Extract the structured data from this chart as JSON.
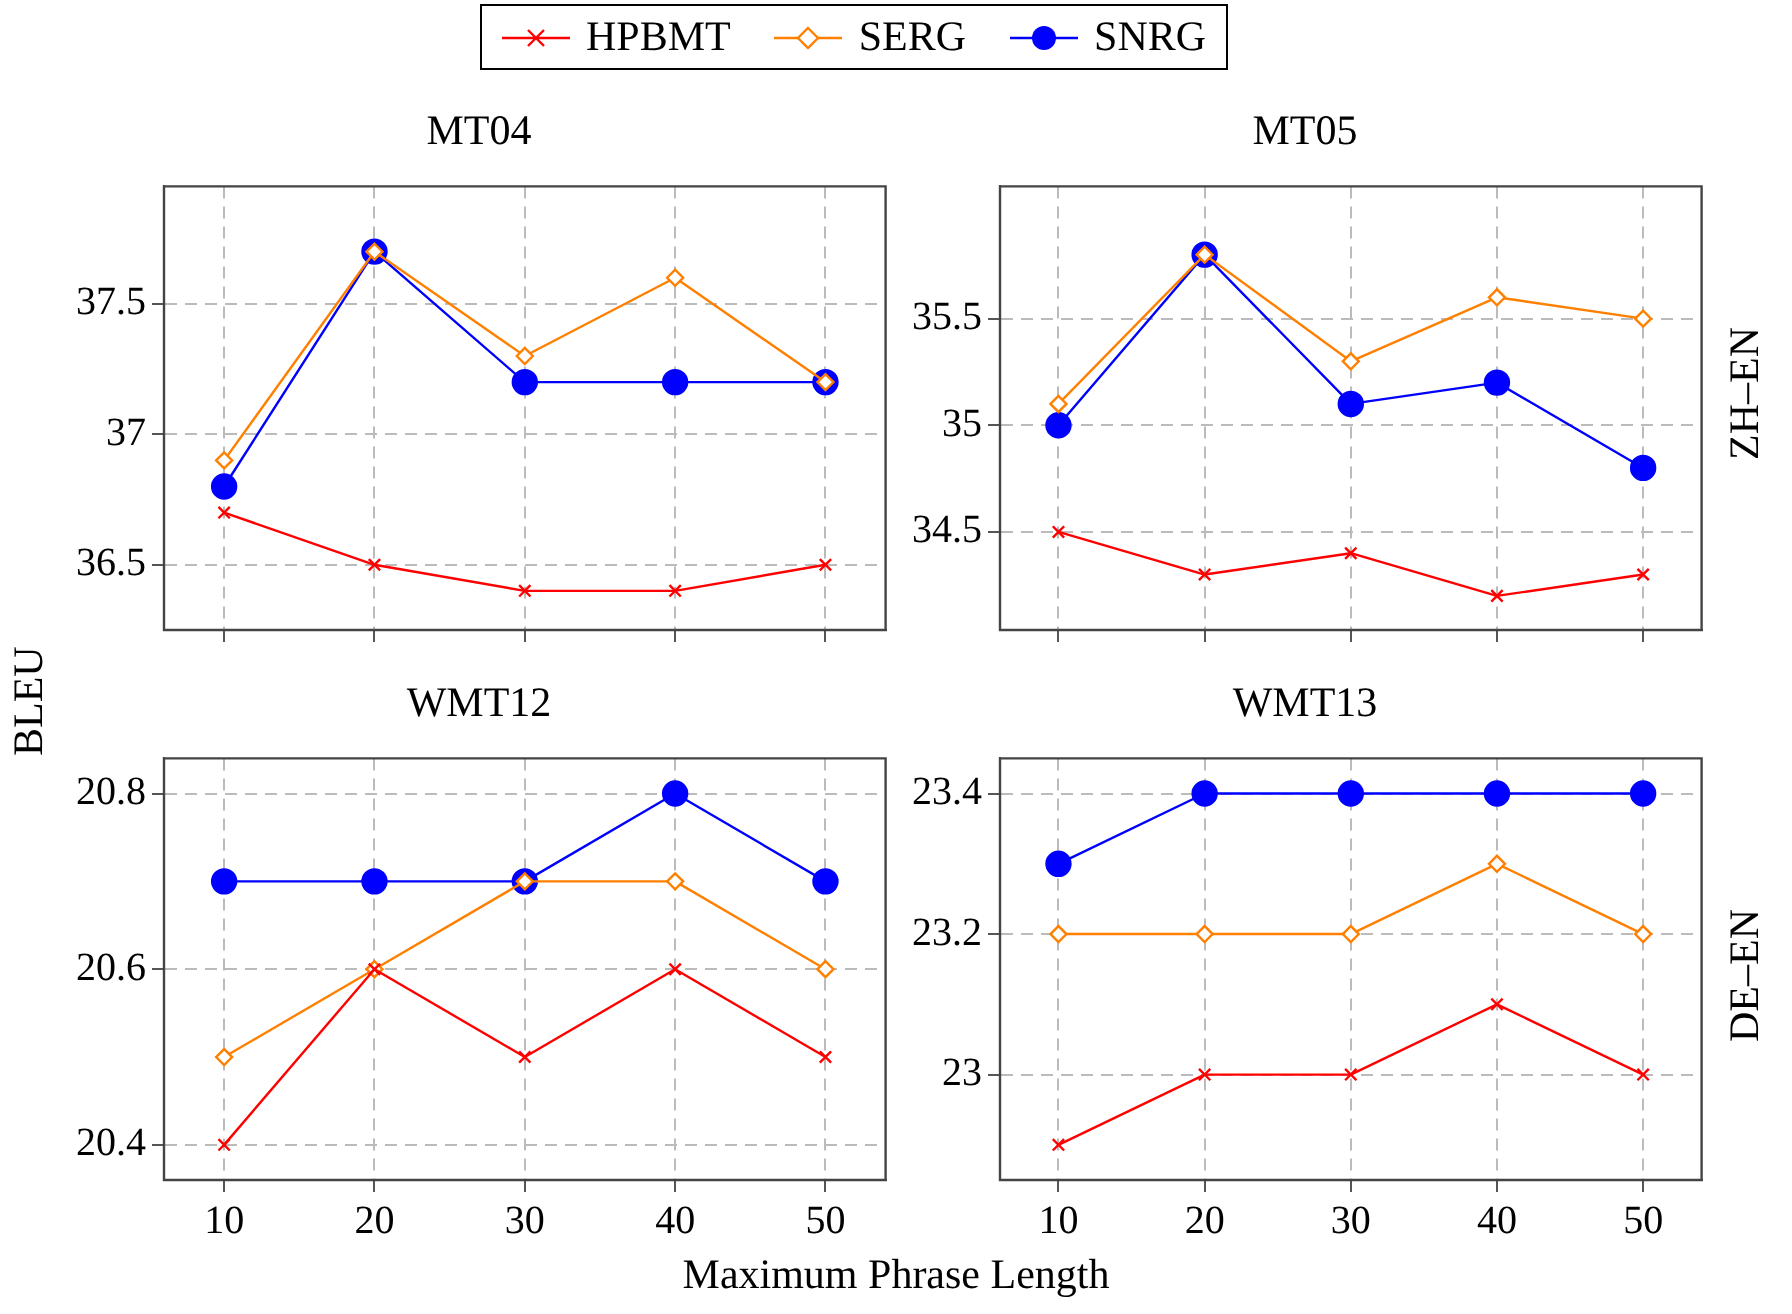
{
  "chart_data": [
    {
      "type": "line",
      "title": "MT04",
      "ylabel": "BLEU",
      "legend": "top",
      "grid": true,
      "tick_labels": "y",
      "x": [
        10,
        20,
        30,
        40,
        50
      ],
      "xlim": [
        6,
        54
      ],
      "xticks": [
        10,
        20,
        30,
        40,
        50
      ],
      "ylim": [
        36.25,
        37.95
      ],
      "yticks": [
        36.5,
        37,
        37.5
      ],
      "series": [
        {
          "name": "HPBMT",
          "color": "#ff0000",
          "marker": "cross",
          "values": [
            36.7,
            36.5,
            36.4,
            36.4,
            36.5
          ]
        },
        {
          "name": "SERG",
          "color": "#ff8000",
          "marker": "diamond",
          "values": [
            36.9,
            37.7,
            37.3,
            37.6,
            37.2
          ]
        },
        {
          "name": "SNRG",
          "color": "#0000ff",
          "marker": "circle",
          "values": [
            36.8,
            37.7,
            37.2,
            37.2,
            37.2
          ]
        }
      ]
    },
    {
      "type": "line",
      "title": "MT05",
      "y2label": "ZH–EN",
      "grid": true,
      "tick_labels": "y",
      "x": [
        10,
        20,
        30,
        40,
        50
      ],
      "xlim": [
        6,
        54
      ],
      "xticks": [
        10,
        20,
        30,
        40,
        50
      ],
      "ylim": [
        34.04,
        36.12
      ],
      "yticks": [
        34.5,
        35,
        35.5
      ],
      "series": [
        {
          "color": "#ff0000",
          "marker": "cross",
          "values": [
            34.5,
            34.3,
            34.4,
            34.2,
            34.3
          ]
        },
        {
          "color": "#ff8000",
          "marker": "diamond",
          "values": [
            35.1,
            35.8,
            35.3,
            35.6,
            35.5
          ]
        },
        {
          "color": "#0000ff",
          "marker": "circle",
          "values": [
            35.0,
            35.8,
            35.1,
            35.2,
            34.8
          ]
        }
      ]
    },
    {
      "type": "line",
      "title": "WMT12",
      "xlabel": "Maximum Phrase Length",
      "grid": true,
      "x": [
        10,
        20,
        30,
        40,
        50
      ],
      "xlim": [
        6,
        54
      ],
      "xticks": [
        10,
        20,
        30,
        40,
        50
      ],
      "ylim": [
        20.36,
        20.84
      ],
      "yticks": [
        20.4,
        20.6,
        20.8
      ],
      "series": [
        {
          "color": "#ff0000",
          "marker": "cross",
          "values": [
            20.4,
            20.6,
            20.5,
            20.6,
            20.5
          ]
        },
        {
          "color": "#ff8000",
          "marker": "diamond",
          "values": [
            20.5,
            20.6,
            20.7,
            20.7,
            20.6
          ]
        },
        {
          "color": "#0000ff",
          "marker": "circle",
          "values": [
            20.7,
            20.7,
            20.7,
            20.8,
            20.7
          ]
        }
      ]
    },
    {
      "type": "line",
      "title": "WMT13",
      "y2label": "DE–EN",
      "grid": true,
      "x": [
        10,
        20,
        30,
        40,
        50
      ],
      "xlim": [
        6,
        54
      ],
      "xticks": [
        10,
        20,
        30,
        40,
        50
      ],
      "ylim": [
        22.85,
        23.45
      ],
      "yticks": [
        23,
        23.2,
        23.4
      ],
      "series": [
        {
          "color": "#ff0000",
          "marker": "cross",
          "values": [
            22.9,
            23.0,
            23.0,
            23.1,
            23.0
          ]
        },
        {
          "color": "#ff8000",
          "marker": "diamond",
          "values": [
            23.2,
            23.2,
            23.2,
            23.3,
            23.2
          ]
        },
        {
          "color": "#0000ff",
          "marker": "circle",
          "values": [
            23.3,
            23.4,
            23.4,
            23.4,
            23.4
          ]
        }
      ]
    }
  ]
}
